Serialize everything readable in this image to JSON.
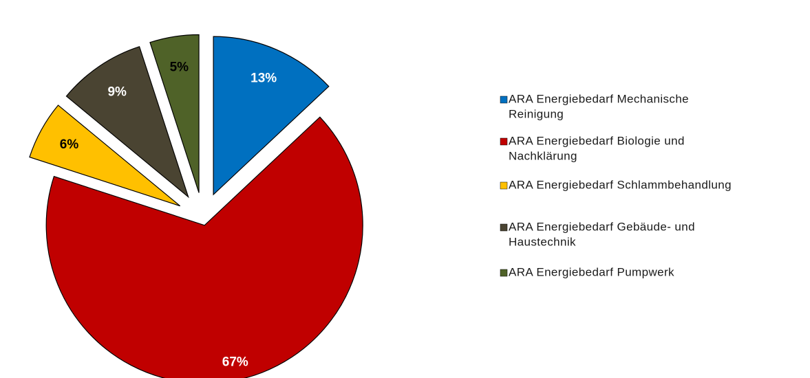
{
  "chart_data": {
    "type": "pie",
    "title": "",
    "legend_position": "right",
    "slices": [
      {
        "name": "ARA Energiebedarf Mechanische Reinigung",
        "value": 13,
        "label": "13%",
        "color": "#0070C0",
        "label_color": "#ffffff"
      },
      {
        "name": "ARA Energiebedarf Biologie und Nachklärung",
        "value": 67,
        "label": "67%",
        "color": "#C00000",
        "label_color": "#ffffff"
      },
      {
        "name": "ARA Energiebedarf Schlammbehandlung",
        "value": 6,
        "label": "6%",
        "color": "#FFC000",
        "label_color": "#000000"
      },
      {
        "name": "ARA Energiebedarf Gebäude- und Haustechnik",
        "value": 9,
        "label": "9%",
        "color": "#4A4432",
        "label_color": "#ffffff"
      },
      {
        "name": "ARA Energiebedarf Pumpwerk",
        "value": 5,
        "label": "5%",
        "color": "#4F6228",
        "label_color": "#000000"
      }
    ],
    "legend": [
      {
        "lines": [
          "ARA Energiebedarf Mechanische",
          "Reinigung"
        ],
        "color": "#0070C0"
      },
      {
        "lines": [
          "ARA Energiebedarf Biologie und",
          "Nachklärung"
        ],
        "color": "#C00000"
      },
      {
        "lines": [
          "ARA Energiebedarf Schlammbehandlung"
        ],
        "color": "#FFC000"
      },
      {
        "lines": [
          "ARA Energiebedarf Gebäude- und",
          "Haustechnik"
        ],
        "color": "#4A4432"
      },
      {
        "lines": [
          "ARA Energiebedarf Pumpwerk"
        ],
        "color": "#4F6228"
      }
    ]
  }
}
